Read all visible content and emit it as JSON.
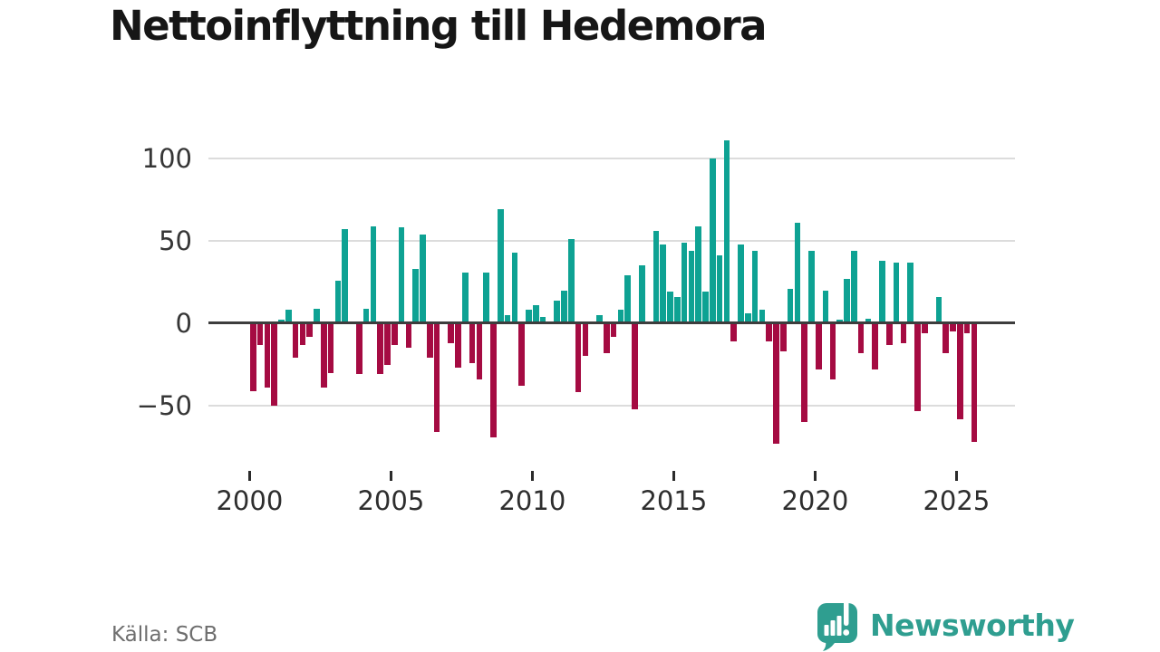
{
  "title": "Nettoinflyttning till Hedemora",
  "source": "Källa: SCB",
  "branding": {
    "name": "Newsworthy",
    "icon": "bar-chart-speech-bubble-icon"
  },
  "colors": {
    "positive_bar": "#0ea293",
    "negative_bar": "#a50b42",
    "brand_teal": "#2f9e90",
    "gridline": "#dcdcdc",
    "zero_line": "#3d3d3d",
    "axis_text": "#363636",
    "source_text": "#6e6e6e",
    "title_text": "#161616"
  },
  "chart_data": {
    "type": "bar",
    "title": "Nettoinflyttning till Hedemora",
    "xlabel": "",
    "ylabel": "",
    "frequency": "quarterly",
    "grid": true,
    "legend": "none",
    "ylim": [
      -85,
      120
    ],
    "y_ticks": [
      {
        "value": 100,
        "label": "100"
      },
      {
        "value": 50,
        "label": "50"
      },
      {
        "value": 0,
        "label": "0"
      },
      {
        "value": -50,
        "label": "−50"
      }
    ],
    "x_ticks": [
      {
        "year": 2000,
        "label": "2000"
      },
      {
        "year": 2005,
        "label": "2005"
      },
      {
        "year": 2010,
        "label": "2010"
      },
      {
        "year": 2015,
        "label": "2015"
      },
      {
        "year": 2020,
        "label": "2020"
      },
      {
        "year": 2025,
        "label": "2025"
      }
    ],
    "x": [
      "2000Q1",
      "2000Q2",
      "2000Q3",
      "2000Q4",
      "2001Q1",
      "2001Q2",
      "2001Q3",
      "2001Q4",
      "2002Q1",
      "2002Q2",
      "2002Q3",
      "2002Q4",
      "2003Q1",
      "2003Q2",
      "2003Q3",
      "2003Q4",
      "2004Q1",
      "2004Q2",
      "2004Q3",
      "2004Q4",
      "2005Q1",
      "2005Q2",
      "2005Q3",
      "2005Q4",
      "2006Q1",
      "2006Q2",
      "2006Q3",
      "2006Q4",
      "2007Q1",
      "2007Q2",
      "2007Q3",
      "2007Q4",
      "2008Q1",
      "2008Q2",
      "2008Q3",
      "2008Q4",
      "2009Q1",
      "2009Q2",
      "2009Q3",
      "2009Q4",
      "2010Q1",
      "2010Q2",
      "2010Q3",
      "2010Q4",
      "2011Q1",
      "2011Q2",
      "2011Q3",
      "2011Q4",
      "2012Q1",
      "2012Q2",
      "2012Q3",
      "2012Q4",
      "2013Q1",
      "2013Q2",
      "2013Q3",
      "2013Q4",
      "2014Q1",
      "2014Q2",
      "2014Q3",
      "2014Q4",
      "2015Q1",
      "2015Q2",
      "2015Q3",
      "2015Q4",
      "2016Q1",
      "2016Q2",
      "2016Q3",
      "2016Q4",
      "2017Q1",
      "2017Q2",
      "2017Q3",
      "2017Q4",
      "2018Q1",
      "2018Q2",
      "2018Q3",
      "2018Q4",
      "2019Q1",
      "2019Q2",
      "2019Q3",
      "2019Q4",
      "2020Q1",
      "2020Q2",
      "2020Q3",
      "2020Q4",
      "2021Q1",
      "2021Q2",
      "2021Q3",
      "2021Q4",
      "2022Q1",
      "2022Q2",
      "2022Q3",
      "2022Q4",
      "2023Q1",
      "2023Q2",
      "2023Q3",
      "2023Q4",
      "2024Q1",
      "2024Q2",
      "2024Q3",
      "2024Q4",
      "2025Q1",
      "2025Q2",
      "2025Q3"
    ],
    "values": [
      -41,
      -13,
      -39,
      -50,
      2,
      8,
      -21,
      -13,
      -8,
      9,
      -39,
      -30,
      26,
      57,
      0,
      -31,
      9,
      59,
      -31,
      -25,
      -13,
      58,
      -15,
      33,
      54,
      -21,
      -66,
      0,
      -12,
      -27,
      31,
      -24,
      -34,
      31,
      -69,
      69,
      5,
      43,
      -38,
      8,
      11,
      4,
      0,
      14,
      20,
      51,
      -42,
      -20,
      0,
      5,
      -18,
      -8,
      8,
      29,
      -52,
      35,
      0,
      56,
      48,
      19,
      16,
      49,
      44,
      59,
      19,
      100,
      41,
      111,
      -11,
      48,
      6,
      44,
      8,
      -11,
      -73,
      -17,
      21,
      61,
      -60,
      44,
      -28,
      20,
      -34,
      2,
      27,
      44,
      -18,
      3,
      -28,
      38,
      -13,
      37,
      -12,
      37,
      -53,
      -6,
      0,
      16,
      -18,
      -5,
      -58,
      -6,
      -72
    ]
  }
}
